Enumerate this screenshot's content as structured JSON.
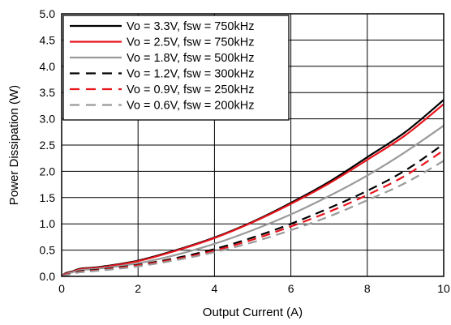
{
  "chart_data": {
    "type": "line",
    "title": "",
    "xlabel": "Output Current (A)",
    "ylabel": "Power Dissipation (W)",
    "xlim": [
      0,
      10
    ],
    "ylim": [
      0,
      5.0
    ],
    "x_ticks": [
      "0",
      "2",
      "4",
      "6",
      "8",
      "10"
    ],
    "y_ticks": [
      "0.0",
      "0.5",
      "1.0",
      "1.5",
      "2.0",
      "2.5",
      "3.0",
      "3.5",
      "4.0",
      "4.5",
      "5.0"
    ],
    "grid": true,
    "legend_position": "top-left",
    "series": [
      {
        "name": "Vo = 3.3V, fsw = 750kHz",
        "color": "#000000",
        "dash": "solid",
        "x": [
          0,
          0.1,
          0.3,
          0.5,
          1,
          2,
          3,
          4,
          5,
          6,
          7,
          8,
          9,
          10
        ],
        "y": [
          0,
          0.06,
          0.1,
          0.15,
          0.18,
          0.3,
          0.5,
          0.74,
          1.04,
          1.4,
          1.8,
          2.27,
          2.75,
          3.36
        ]
      },
      {
        "name": "Vo = 2.5V, fsw = 750kHz",
        "color": "#e8141c",
        "dash": "solid",
        "x": [
          0,
          0.1,
          0.3,
          0.5,
          1,
          2,
          3,
          4,
          5,
          6,
          7,
          8,
          9,
          10
        ],
        "y": [
          0,
          0.05,
          0.09,
          0.14,
          0.17,
          0.29,
          0.49,
          0.73,
          1.03,
          1.38,
          1.77,
          2.22,
          2.69,
          3.28
        ]
      },
      {
        "name": "Vo = 1.8V, fsw = 500kHz",
        "color": "#9a9a9a",
        "dash": "solid",
        "x": [
          0,
          0.1,
          0.3,
          0.5,
          1,
          2,
          3,
          4,
          5,
          6,
          7,
          8,
          9,
          10
        ],
        "y": [
          0,
          0.04,
          0.08,
          0.12,
          0.15,
          0.25,
          0.41,
          0.62,
          0.88,
          1.18,
          1.53,
          1.92,
          2.37,
          2.87
        ]
      },
      {
        "name": "Vo = 1.2V, fsw = 300kHz",
        "color": "#000000",
        "dash": "dashed",
        "x": [
          0,
          0.1,
          0.3,
          0.5,
          1,
          2,
          3,
          4,
          5,
          6,
          7,
          8,
          9,
          10
        ],
        "y": [
          0,
          0.03,
          0.06,
          0.1,
          0.13,
          0.22,
          0.35,
          0.52,
          0.74,
          1.0,
          1.3,
          1.63,
          2.02,
          2.52
        ]
      },
      {
        "name": "Vo = 0.9V, fsw = 250kHz",
        "color": "#e8141c",
        "dash": "dashed",
        "x": [
          0,
          0.1,
          0.3,
          0.5,
          1,
          2,
          3,
          4,
          5,
          6,
          7,
          8,
          9,
          10
        ],
        "y": [
          0,
          0.03,
          0.06,
          0.09,
          0.12,
          0.21,
          0.33,
          0.49,
          0.7,
          0.95,
          1.23,
          1.55,
          1.92,
          2.4
        ]
      },
      {
        "name": "Vo = 0.6V, fsw = 200kHz",
        "color": "#9a9a9a",
        "dash": "dashed",
        "x": [
          0,
          0.1,
          0.3,
          0.5,
          1,
          2,
          3,
          4,
          5,
          6,
          7,
          8,
          9,
          10
        ],
        "y": [
          0,
          0.02,
          0.05,
          0.08,
          0.11,
          0.19,
          0.31,
          0.46,
          0.65,
          0.88,
          1.14,
          1.45,
          1.78,
          2.2
        ]
      }
    ]
  }
}
